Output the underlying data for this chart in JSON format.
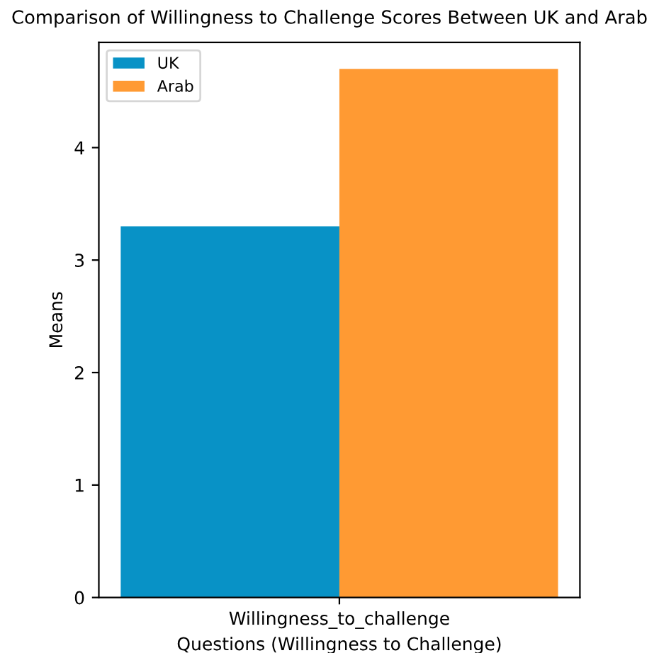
{
  "chart_data": {
    "type": "bar",
    "title": "Comparison of Willingness to Challenge Scores Between UK and Arab",
    "xlabel": "Questions (Willingness to Challenge)",
    "ylabel": "Means",
    "categories": [
      "Willingness_to_challenge"
    ],
    "series": [
      {
        "name": "UK",
        "color": "#0892c6",
        "values": [
          3.3
        ]
      },
      {
        "name": "Arab",
        "color": "#ff9a33",
        "values": [
          4.7
        ]
      }
    ],
    "ylim": [
      0,
      4.935
    ],
    "yticks": [
      0,
      1,
      2,
      3,
      4
    ],
    "legend": "top left",
    "grid": false
  }
}
